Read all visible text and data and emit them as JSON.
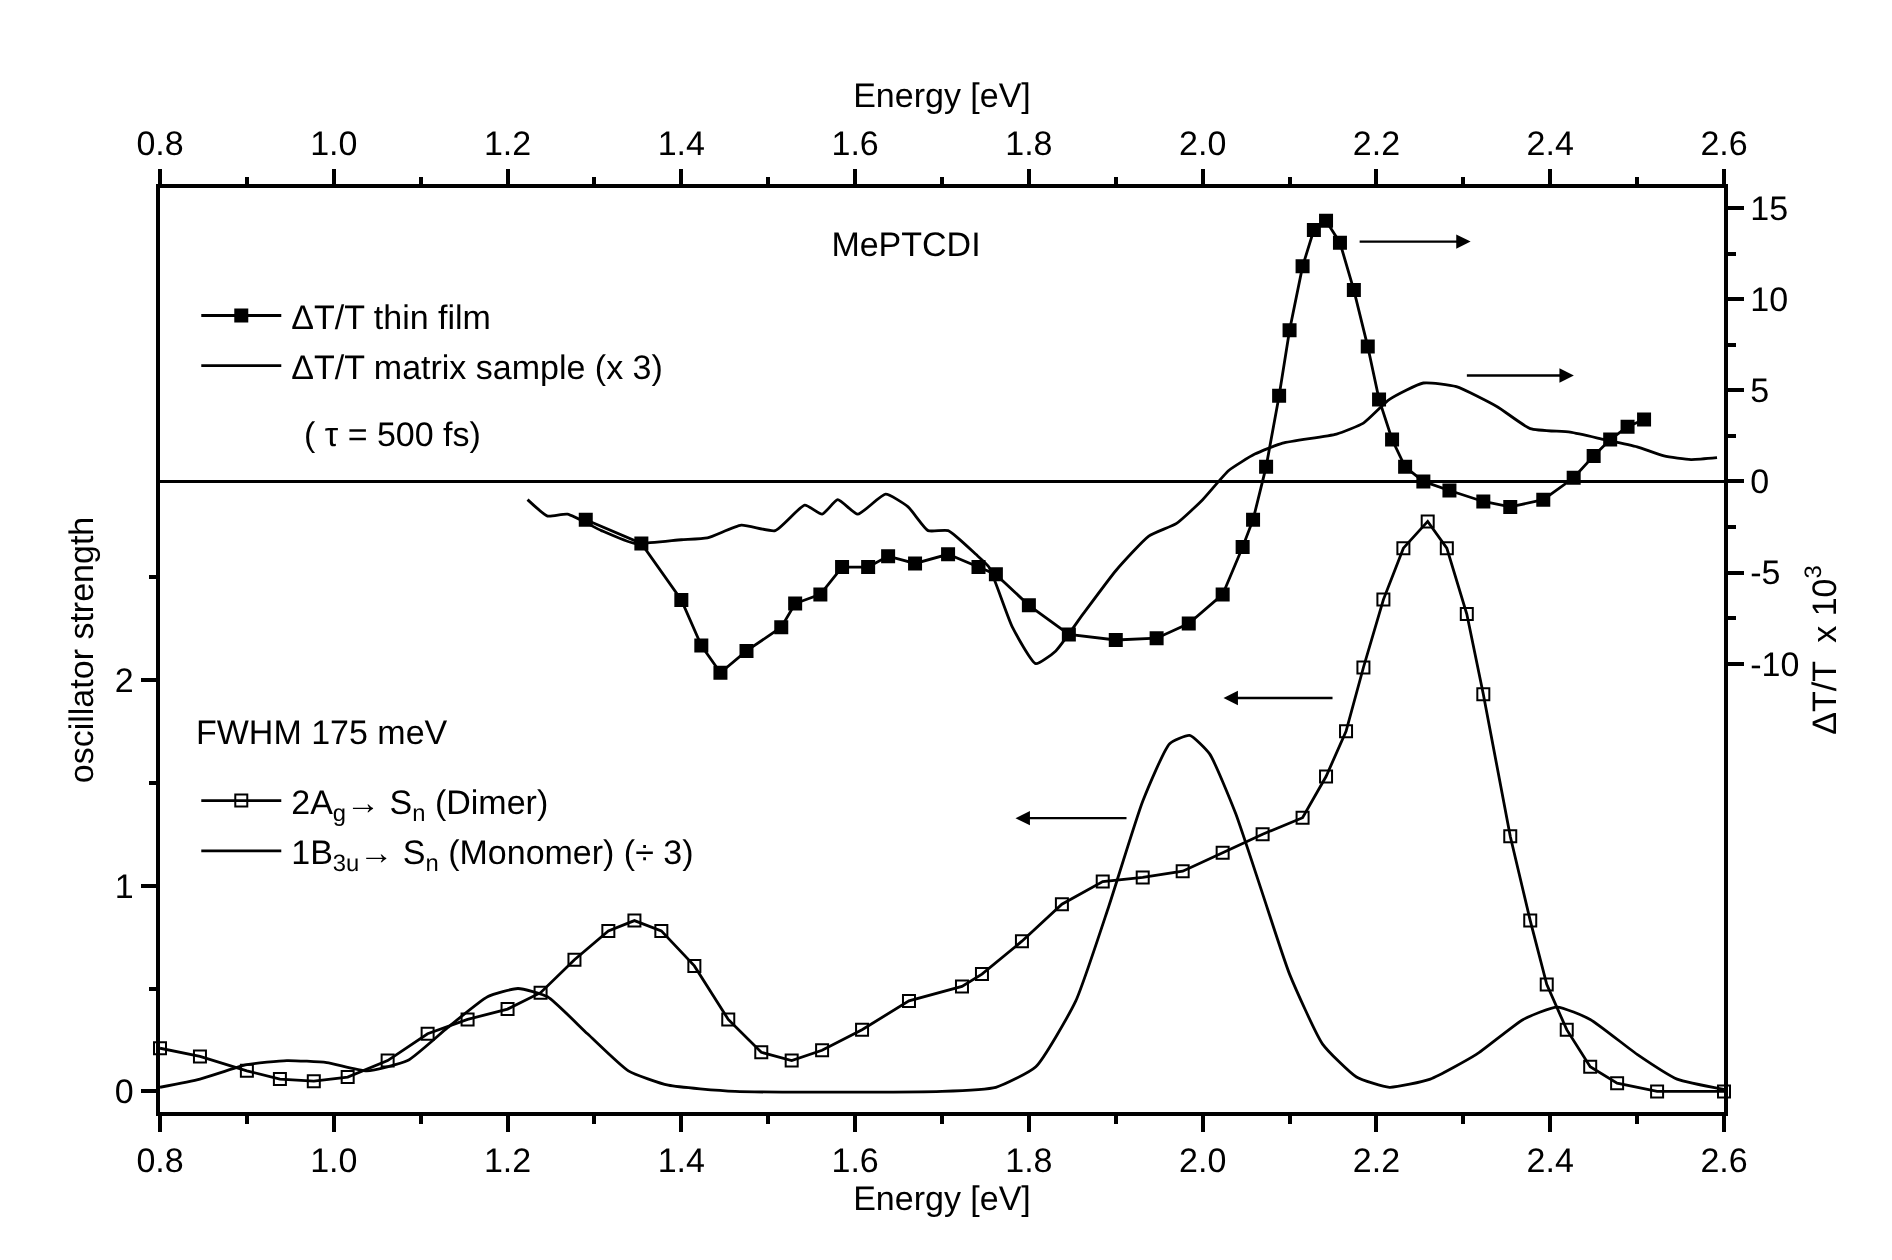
{
  "chart_data": {
    "type": "line",
    "title": "MePTCDI",
    "xlabel": "Energy [eV]",
    "x2label": "Energy [eV]",
    "ylabel": "oscillator strength",
    "y2label": "ΔT/T  x 10$^{3}$",
    "xlim": [
      0.8,
      2.6
    ],
    "xticks": [
      0.8,
      {
        "value": 1,
        "label": "1.0"
      },
      1.2,
      1.4,
      1.6,
      1.8,
      {
        "value": 2,
        "label": "2.0"
      },
      2.2,
      2.4,
      2.6,
      {
        "value": 0.9,
        "label": null
      },
      {
        "value": 1.1,
        "label": null
      },
      {
        "value": 1.3,
        "label": null
      },
      {
        "value": 1.5,
        "label": null
      },
      {
        "value": 1.7,
        "label": null
      },
      {
        "value": 1.9,
        "label": null
      },
      {
        "value": 2.1,
        "label": null
      },
      {
        "value": 2.3,
        "label": null
      },
      {
        "value": 2.5,
        "label": null
      }
    ],
    "x2lim": [
      0.8,
      2.6
    ],
    "x2ticks": [
      0.8,
      {
        "value": 1,
        "label": "1.0"
      },
      1.2,
      1.4,
      1.6,
      1.8,
      {
        "value": 2,
        "label": "2.0"
      },
      2.2,
      2.4,
      2.6,
      {
        "value": 0.9,
        "label": null
      },
      {
        "value": 1.1,
        "label": null
      },
      {
        "value": 1.3,
        "label": null
      },
      {
        "value": 1.5,
        "label": null
      },
      {
        "value": 1.7,
        "label": null
      },
      {
        "value": 1.9,
        "label": null
      },
      {
        "value": 2.1,
        "label": null
      },
      {
        "value": 2.3,
        "label": null
      },
      {
        "value": 2.5,
        "label": null
      }
    ],
    "ylim": [
      -0.1,
      4.39
    ],
    "yticks": [
      0,
      1,
      2,
      {
        "value": 0.5,
        "label": null
      },
      {
        "value": 1.5,
        "label": null
      },
      {
        "value": 2.5,
        "label": null
      }
    ],
    "y2lim": [
      -34.6,
      16.1
    ],
    "y2ticks": [
      15,
      10,
      5,
      0,
      -5,
      -10,
      {
        "value": 12.5,
        "label": null
      },
      {
        "value": 7.5,
        "label": null
      },
      {
        "value": 2.5,
        "label": null
      },
      {
        "value": -2.5,
        "label": null
      },
      {
        "value": -7.5,
        "label": null
      }
    ],
    "grid": false,
    "legend": "top left",
    "line_style": "solid",
    "ref_lines": [
      {
        "axis": "y2",
        "value": 0
      }
    ],
    "annotations": [
      "( τ = 500 fs)",
      "FWHM 175 meV"
    ],
    "series": [
      {
        "name": "ΔT/T thin film",
        "color": "#000000",
        "axis": "y2",
        "marker": "square",
        "x": [
          1.29,
          1.354,
          1.4,
          1.423,
          1.445,
          1.475,
          1.515,
          1.531,
          1.56,
          1.585,
          1.615,
          1.638,
          1.669,
          1.707,
          1.742,
          1.762,
          1.8,
          1.846,
          1.9,
          1.947,
          1.984,
          2.023,
          2.046,
          2.058,
          2.073,
          2.088,
          2.1,
          2.115,
          2.128,
          2.142,
          2.158,
          2.174,
          2.19,
          2.203,
          2.218,
          2.233,
          2.254,
          2.284,
          2.323,
          2.354,
          2.392,
          2.427,
          2.45,
          2.469,
          2.489,
          2.508
        ],
        "values": [
          -2.1,
          -3.4,
          -6.5,
          -9.0,
          -10.5,
          -9.3,
          -8.0,
          -6.7,
          -6.2,
          -4.7,
          -4.7,
          -4.1,
          -4.5,
          -4.0,
          -4.7,
          -5.1,
          -6.8,
          -8.4,
          -8.7,
          -8.6,
          -7.8,
          -6.2,
          -3.6,
          -2.1,
          0.8,
          4.7,
          8.3,
          11.8,
          13.8,
          14.3,
          13.1,
          10.5,
          7.4,
          4.5,
          2.3,
          0.8,
          0,
          -0.5,
          -1.1,
          -1.4,
          -1.0,
          0.2,
          1.4,
          2.3,
          3.0,
          3.4
        ]
      },
      {
        "name": "ΔT/T matrix sample (x 3)",
        "color": "#000000",
        "axis": "y2",
        "marker": "none",
        "x": [
          1.223,
          1.246,
          1.269,
          1.308,
          1.346,
          1.4,
          1.43,
          1.469,
          1.508,
          1.542,
          1.562,
          1.58,
          1.603,
          1.635,
          1.661,
          1.684,
          1.707,
          1.739,
          1.754,
          1.781,
          1.808,
          1.831,
          1.862,
          1.9,
          1.938,
          1.97,
          2.0,
          2.03,
          2.06,
          2.092,
          2.154,
          2.185,
          2.215,
          2.254,
          2.292,
          2.339,
          2.377,
          2.423,
          2.462,
          2.5,
          2.531,
          2.562,
          2.592
        ],
        "values": [
          -1.0,
          -1.9,
          -1.8,
          -2.7,
          -3.4,
          -3.2,
          -3.1,
          -2.4,
          -2.7,
          -1.3,
          -1.8,
          -1.0,
          -1.8,
          -0.7,
          -1.4,
          -2.7,
          -2.7,
          -4.0,
          -4.7,
          -8.0,
          -10.0,
          -9.3,
          -7.3,
          -4.9,
          -3.0,
          -2.3,
          -1.0,
          0.6,
          1.5,
          2.1,
          2.6,
          3.2,
          4.5,
          5.4,
          5.2,
          4.1,
          2.9,
          2.7,
          2.3,
          1.9,
          1.4,
          1.2,
          1.3
        ]
      },
      {
        "name": "2A$_{g}$→ S$_{n}$ (Dimer)",
        "color": "#000000",
        "marker": "square-open",
        "x": [
          0.8,
          0.846,
          0.9,
          0.938,
          0.977,
          1.016,
          1.062,
          1.108,
          1.154,
          1.2,
          1.238,
          1.277,
          1.316,
          1.346,
          1.377,
          1.415,
          1.454,
          1.492,
          1.527,
          1.562,
          1.608,
          1.662,
          1.723,
          1.746,
          1.792,
          1.838,
          1.885,
          1.931,
          1.977,
          2.023,
          2.069,
          2.115,
          2.142,
          2.165,
          2.185,
          2.208,
          2.231,
          2.259,
          2.281,
          2.304,
          2.323,
          2.354,
          2.377,
          2.396,
          2.419,
          2.446,
          2.477,
          2.523,
          2.6
        ],
        "values": [
          0.21,
          0.17,
          0.1,
          0.06,
          0.05,
          0.07,
          0.15,
          0.28,
          0.35,
          0.4,
          0.48,
          0.64,
          0.78,
          0.83,
          0.78,
          0.61,
          0.35,
          0.19,
          0.15,
          0.2,
          0.3,
          0.44,
          0.51,
          0.57,
          0.73,
          0.91,
          1.02,
          1.04,
          1.07,
          1.16,
          1.25,
          1.33,
          1.53,
          1.75,
          2.06,
          2.39,
          2.64,
          2.77,
          2.64,
          2.32,
          1.93,
          1.24,
          0.83,
          0.52,
          0.3,
          0.12,
          0.04,
          0,
          0
        ]
      },
      {
        "name": "1B$_{3u}$→ S$_{n}$ (Monomer) (÷ 3)",
        "color": "#000000",
        "marker": "none",
        "x": [
          0.8,
          0.846,
          0.9,
          0.946,
          0.992,
          1.038,
          1.085,
          1.131,
          1.177,
          1.212,
          1.246,
          1.292,
          1.339,
          1.385,
          1.462,
          1.7,
          1.762,
          1.808,
          1.854,
          1.892,
          1.931,
          1.962,
          1.985,
          2.008,
          2.038,
          2.069,
          2.1,
          2.138,
          2.177,
          2.215,
          2.262,
          2.315,
          2.369,
          2.408,
          2.446,
          2.5,
          2.546,
          2.6
        ],
        "values": [
          0.02,
          0.06,
          0.13,
          0.15,
          0.14,
          0.1,
          0.15,
          0.31,
          0.46,
          0.5,
          0.46,
          0.28,
          0.1,
          0.03,
          0,
          0,
          0.02,
          0.12,
          0.44,
          0.9,
          1.41,
          1.69,
          1.73,
          1.64,
          1.35,
          0.96,
          0.57,
          0.23,
          0.07,
          0.02,
          0.06,
          0.18,
          0.35,
          0.41,
          0.35,
          0.18,
          0.06,
          0.01
        ]
      }
    ]
  }
}
